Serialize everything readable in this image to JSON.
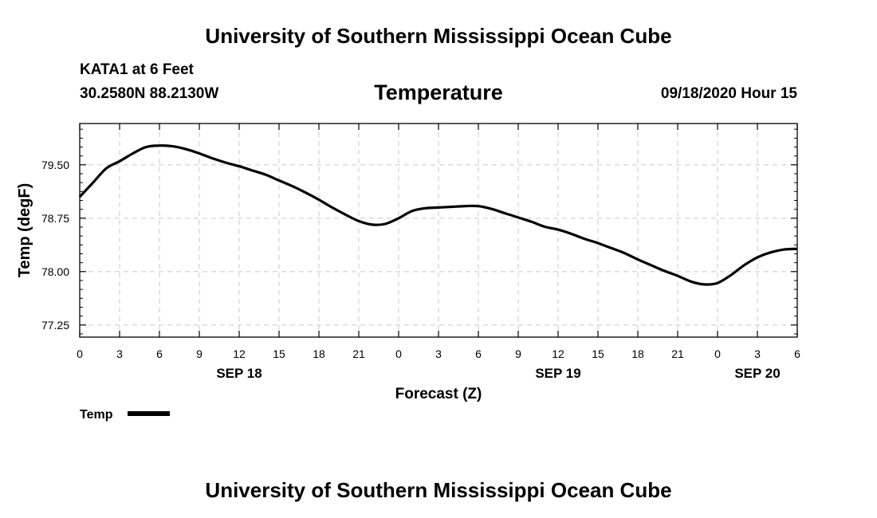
{
  "header": {
    "top_title": "University of Southern Mississippi Ocean Cube",
    "station": "KATA1 at 6 Feet",
    "coords": "30.2580N 88.2130W",
    "datetime": "09/18/2020 Hour 15"
  },
  "footer": {
    "bottom_title": "University of Southern Mississippi Ocean Cube"
  },
  "chart_data": {
    "type": "line",
    "title": "Temperature",
    "xlabel": "Forecast (Z)",
    "ylabel": "Temp (degF)",
    "xlim": [
      0,
      54
    ],
    "ylim": [
      77.08,
      80.08
    ],
    "grid": true,
    "x_ticks": [
      0,
      3,
      6,
      9,
      12,
      15,
      18,
      21,
      24,
      27,
      30,
      33,
      36,
      39,
      42,
      45,
      48,
      51,
      54
    ],
    "x_tick_labels": [
      "0",
      "3",
      "6",
      "9",
      "12",
      "15",
      "18",
      "21",
      "0",
      "3",
      "6",
      "9",
      "12",
      "15",
      "18",
      "21",
      "0",
      "3",
      "6"
    ],
    "date_labels": [
      {
        "x": 12,
        "label": "SEP 18"
      },
      {
        "x": 36,
        "label": "SEP 19"
      },
      {
        "x": 51,
        "label": "SEP 20"
      }
    ],
    "y_ticks": [
      77.25,
      78.0,
      78.75,
      79.5
    ],
    "y_tick_labels": [
      "77.25",
      "78.00",
      "78.75",
      "79.50"
    ],
    "legend": {
      "position": "bottom-left",
      "entries": [
        "Temp"
      ]
    },
    "series": [
      {
        "name": "Temp",
        "color": "#000000",
        "x": [
          0,
          1,
          2,
          3,
          4,
          5,
          6,
          7,
          8,
          9,
          10,
          11,
          12,
          13,
          14,
          15,
          16,
          17,
          18,
          19,
          20,
          21,
          22,
          23,
          24,
          25,
          26,
          27,
          28,
          29,
          30,
          31,
          32,
          33,
          34,
          35,
          36,
          37,
          38,
          39,
          40,
          41,
          42,
          43,
          44,
          45,
          46,
          47,
          48,
          49,
          50,
          51,
          52,
          53,
          54
        ],
        "y": [
          79.05,
          79.25,
          79.45,
          79.55,
          79.66,
          79.75,
          79.77,
          79.76,
          79.72,
          79.66,
          79.59,
          79.53,
          79.48,
          79.42,
          79.36,
          79.28,
          79.2,
          79.11,
          79.01,
          78.9,
          78.8,
          78.71,
          78.66,
          78.67,
          78.75,
          78.85,
          78.89,
          78.9,
          78.91,
          78.92,
          78.92,
          78.88,
          78.82,
          78.76,
          78.7,
          78.63,
          78.59,
          78.53,
          78.46,
          78.4,
          78.33,
          78.26,
          78.17,
          78.09,
          78.01,
          77.94,
          77.86,
          77.82,
          77.84,
          77.95,
          78.09,
          78.2,
          78.27,
          78.31,
          78.32
        ]
      }
    ]
  }
}
